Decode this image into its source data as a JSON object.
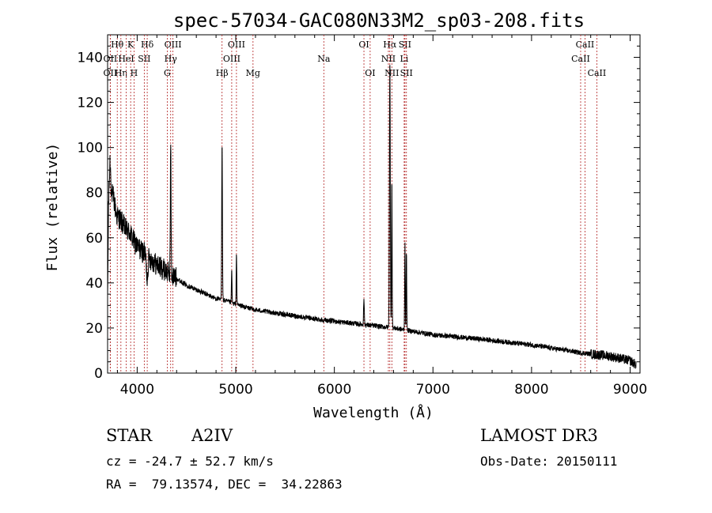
{
  "chart_data": {
    "type": "line",
    "title": "spec-57034-GAC080N33M2_sp03-208.fits",
    "xlabel": "Wavelength (Å)",
    "ylabel": "Flux (relative)",
    "xlim": [
      3700,
      9100
    ],
    "ylim": [
      0,
      150
    ],
    "x_ticks": [
      4000,
      5000,
      6000,
      7000,
      8000,
      9000
    ],
    "y_ticks": [
      0,
      20,
      40,
      60,
      80,
      100,
      120,
      140
    ],
    "grid": false,
    "line_color": "#000000",
    "marker_color": "#b22222",
    "continuum": [
      [
        3700,
        30
      ],
      [
        3710,
        75
      ],
      [
        3725,
        95
      ],
      [
        3740,
        80
      ],
      [
        3760,
        78
      ],
      [
        3790,
        70
      ],
      [
        3830,
        68
      ],
      [
        3880,
        64
      ],
      [
        3930,
        62
      ],
      [
        3970,
        58
      ],
      [
        4000,
        56
      ],
      [
        4050,
        54
      ],
      [
        4100,
        52
      ],
      [
        4150,
        50
      ],
      [
        4200,
        48
      ],
      [
        4300,
        45
      ],
      [
        4400,
        42
      ],
      [
        4500,
        39
      ],
      [
        4600,
        37
      ],
      [
        4700,
        35
      ],
      [
        4800,
        33
      ],
      [
        4900,
        32
      ],
      [
        5000,
        30.5
      ],
      [
        5200,
        28
      ],
      [
        5500,
        26
      ],
      [
        5800,
        24
      ],
      [
        6000,
        23
      ],
      [
        6300,
        21.5
      ],
      [
        6600,
        20
      ],
      [
        7000,
        17
      ],
      [
        7500,
        15
      ],
      [
        8000,
        12.5
      ],
      [
        8500,
        9
      ],
      [
        8800,
        7.5
      ],
      [
        9000,
        5.5
      ],
      [
        9050,
        4
      ]
    ],
    "features": [
      {
        "x": 4101,
        "depth": 10,
        "width": 10
      },
      {
        "x": 4340,
        "peak": 102,
        "width": 5
      },
      {
        "x": 4861,
        "peak": 103,
        "width": 5
      },
      {
        "x": 4959,
        "peak": 46,
        "width": 4
      },
      {
        "x": 5007,
        "peak": 54,
        "width": 4
      },
      {
        "x": 6300,
        "peak": 33,
        "width": 5
      },
      {
        "x": 6563,
        "peak": 140,
        "width": 6
      },
      {
        "x": 6583,
        "peak": 88,
        "width": 4
      },
      {
        "x": 6716,
        "peak": 58,
        "width": 4
      },
      {
        "x": 6731,
        "peak": 55,
        "width": 4
      }
    ],
    "line_markers": [
      {
        "label": "Hθ",
        "x": 3798,
        "row": 0
      },
      {
        "label": "OII",
        "x": 3727,
        "row": 1
      },
      {
        "label": "OII",
        "x": 3727,
        "row": 2
      },
      {
        "label": "Hη",
        "x": 3835,
        "row": 2
      },
      {
        "label": "HeI",
        "x": 3889,
        "row": 1
      },
      {
        "label": "K",
        "x": 3934,
        "row": 0
      },
      {
        "label": "H",
        "x": 3968,
        "row": 2
      },
      {
        "label": "SII",
        "x": 4072,
        "row": 1
      },
      {
        "label": "Hδ",
        "x": 4102,
        "row": 0
      },
      {
        "label": "OIII",
        "x": 4363,
        "row": 0
      },
      {
        "label": "Hγ",
        "x": 4340,
        "row": 1
      },
      {
        "label": "G",
        "x": 4305,
        "row": 2
      },
      {
        "label": "Hβ",
        "x": 4861,
        "row": 2
      },
      {
        "label": "OIII",
        "x": 5007,
        "row": 0
      },
      {
        "label": "OIII",
        "x": 4959,
        "row": 1
      },
      {
        "label": "Mg",
        "x": 5175,
        "row": 2
      },
      {
        "label": "Na",
        "x": 5893,
        "row": 1
      },
      {
        "label": "OI",
        "x": 6300,
        "row": 0
      },
      {
        "label": "OI",
        "x": 6363,
        "row": 2
      },
      {
        "label": "Hα",
        "x": 6563,
        "row": 0
      },
      {
        "label": "NII",
        "x": 6548,
        "row": 1
      },
      {
        "label": "NII",
        "x": 6583,
        "row": 2
      },
      {
        "label": "SII",
        "x": 6716,
        "row": 0
      },
      {
        "label": "Li",
        "x": 6708,
        "row": 1
      },
      {
        "label": "SII",
        "x": 6731,
        "row": 2
      },
      {
        "label": "CaII",
        "x": 8542,
        "row": 0
      },
      {
        "label": "CaII",
        "x": 8498,
        "row": 1
      },
      {
        "label": "CaII",
        "x": 8662,
        "row": 2
      }
    ]
  },
  "info": {
    "object_type": "STAR",
    "subclass": "A2IV",
    "survey": "LAMOST DR3",
    "cz": "cz = -24.7 ± 52.7 km/s",
    "obs_date": "Obs-Date: 20150111",
    "coords": "RA =  79.13574, DEC =  34.22863"
  }
}
